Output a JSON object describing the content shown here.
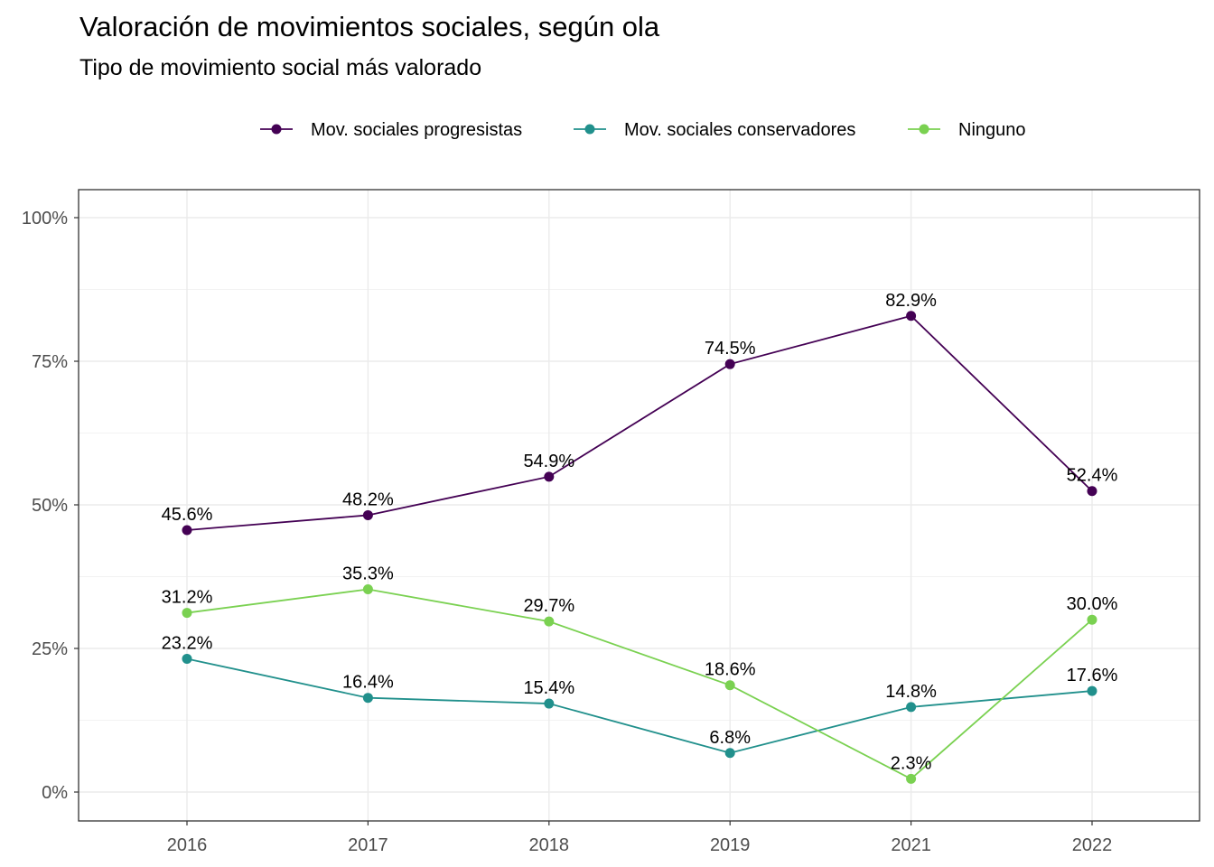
{
  "chart_data": {
    "type": "line",
    "title": "Valoración de movimientos sociales, según ola",
    "subtitle": "Tipo de movimiento social más valorado",
    "xlabel": "",
    "ylabel": "",
    "categories": [
      "2016",
      "2017",
      "2018",
      "2019",
      "2021",
      "2022"
    ],
    "ylim": [
      0,
      100
    ],
    "yticks": [
      "0%",
      "25%",
      "50%",
      "75%",
      "100%"
    ],
    "grid": true,
    "legend_position": "top",
    "series": [
      {
        "name": "Mov. sociales progresistas",
        "color": "#440154",
        "values": [
          45.6,
          48.2,
          54.9,
          74.5,
          82.9,
          52.4
        ],
        "labels": [
          "45.6%",
          "48.2%",
          "54.9%",
          "74.5%",
          "82.9%",
          "52.4%"
        ]
      },
      {
        "name": "Mov. sociales conservadores",
        "color": "#21908C",
        "values": [
          23.2,
          16.4,
          15.4,
          6.8,
          14.8,
          17.6
        ],
        "labels": [
          "23.2%",
          "16.4%",
          "15.4%",
          "6.8%",
          "14.8%",
          "17.6%"
        ]
      },
      {
        "name": "Ninguno",
        "color": "#7AD151",
        "values": [
          31.2,
          35.3,
          29.7,
          18.6,
          2.3,
          30.0
        ],
        "labels": [
          "31.2%",
          "35.3%",
          "29.7%",
          "18.6%",
          "2.3%",
          "30.0%"
        ]
      }
    ]
  }
}
